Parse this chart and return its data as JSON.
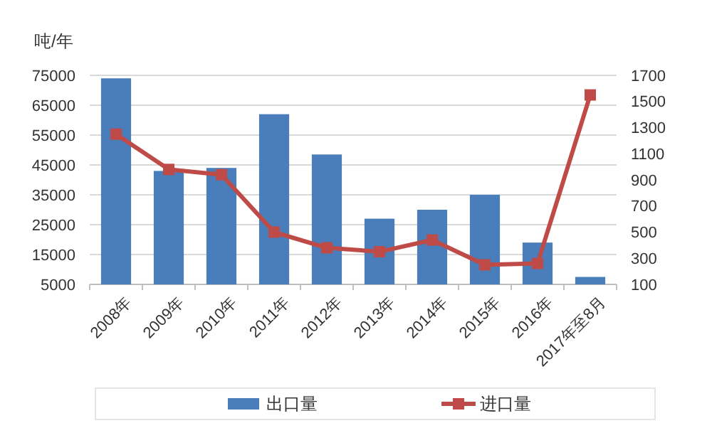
{
  "chart_data": {
    "type": "bar",
    "ylabel": "吨/年",
    "categories": [
      "2008年",
      "2009年",
      "2010年",
      "2011年",
      "2012年",
      "2013年",
      "2014年",
      "2015年",
      "2016年",
      "2017年至8月"
    ],
    "series": [
      {
        "name": "出口量",
        "color": "#4a7ebb",
        "values": [
          74000,
          43000,
          44000,
          62000,
          48500,
          27000,
          30000,
          35000,
          19000,
          7500
        ]
      },
      {
        "name": "进口量",
        "type": "line",
        "axis": "y2",
        "color": "#be4b48",
        "marker": "square",
        "values": [
          1250,
          980,
          940,
          500,
          380,
          350,
          440,
          250,
          260,
          1550
        ]
      }
    ],
    "ylim": [
      5000,
      75000
    ],
    "yticks": [
      5000,
      15000,
      25000,
      35000,
      45000,
      55000,
      65000,
      75000
    ],
    "y2lim": [
      100,
      1700
    ],
    "y2ticks": [
      100,
      300,
      500,
      700,
      900,
      1100,
      1300,
      1500,
      1700
    ],
    "grid": "y",
    "legend": "bottom"
  }
}
